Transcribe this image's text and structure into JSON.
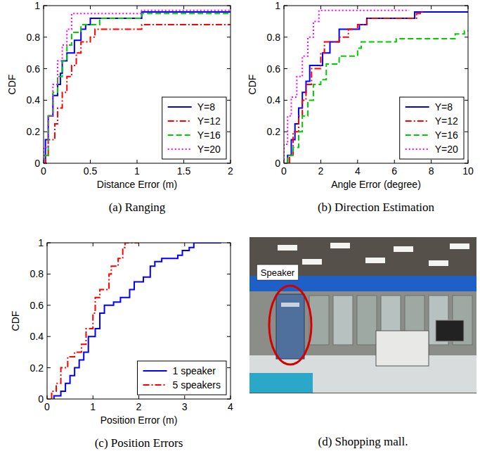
{
  "chart_data": [
    {
      "type": "step",
      "title": "(a) Ranging",
      "xlabel": "Distance Error (m)",
      "ylabel": "CDF",
      "xlim": [
        0,
        2
      ],
      "xticks": [
        0,
        0.5,
        1,
        1.5,
        2
      ],
      "ylim": [
        0,
        1
      ],
      "yticks": [
        0,
        0.2,
        0.4,
        0.6,
        0.8,
        1
      ],
      "grid": false,
      "legend": "lower right",
      "series": [
        {
          "name": "Y=8",
          "color": "#0000ff",
          "line_style": "solid",
          "x": [
            0,
            0.02,
            0.05,
            0.1,
            0.15,
            0.18,
            0.2,
            0.25,
            0.33,
            0.4,
            0.45,
            0.5,
            1.05,
            2
          ],
          "values": [
            0,
            0.15,
            0.3,
            0.43,
            0.5,
            0.57,
            0.65,
            0.7,
            0.78,
            0.85,
            0.88,
            0.92,
            0.96,
            0.96
          ]
        },
        {
          "name": "Y=12",
          "color": "#ff0000",
          "line_style": "dashdot",
          "x": [
            0,
            0.02,
            0.05,
            0.12,
            0.15,
            0.2,
            0.25,
            0.3,
            0.35,
            0.4,
            0.5,
            0.55,
            1.05,
            2
          ],
          "values": [
            0,
            0.05,
            0.15,
            0.25,
            0.35,
            0.45,
            0.55,
            0.62,
            0.7,
            0.77,
            0.8,
            0.85,
            0.88,
            0.88
          ]
        },
        {
          "name": "Y=16",
          "color": "#00cc00",
          "line_style": "dashed",
          "x": [
            0,
            0.05,
            0.1,
            0.15,
            0.2,
            0.25,
            0.3,
            0.4,
            0.6,
            1.05,
            2
          ],
          "values": [
            0.05,
            0.3,
            0.45,
            0.55,
            0.65,
            0.75,
            0.83,
            0.88,
            0.92,
            0.95,
            0.95
          ]
        },
        {
          "name": "Y=20",
          "color": "#ff00ff",
          "line_style": "dotted",
          "x": [
            0,
            0.05,
            0.1,
            0.15,
            0.2,
            0.25,
            0.3,
            1.05,
            2
          ],
          "values": [
            0.1,
            0.3,
            0.5,
            0.65,
            0.75,
            0.85,
            0.95,
            0.97,
            0.97
          ]
        }
      ]
    },
    {
      "type": "step",
      "title": "(b) Direction Estimation",
      "xlabel": "Angle Error (degree)",
      "ylabel": "CDF",
      "xlim": [
        0,
        10
      ],
      "xticks": [
        0,
        2,
        4,
        6,
        8,
        10
      ],
      "ylim": [
        0,
        1
      ],
      "yticks": [
        0,
        0.2,
        0.4,
        0.6,
        0.8,
        1
      ],
      "grid": false,
      "legend": "lower right",
      "series": [
        {
          "name": "Y=8",
          "color": "#0000ff",
          "line_style": "solid",
          "x": [
            0.2,
            0.4,
            0.6,
            0.8,
            1,
            1.2,
            1.4,
            2.1,
            2.5,
            3,
            4.1,
            4.5,
            7.1,
            10
          ],
          "values": [
            0.05,
            0.15,
            0.25,
            0.35,
            0.45,
            0.52,
            0.62,
            0.7,
            0.77,
            0.85,
            0.88,
            0.92,
            0.96,
            0.96
          ]
        },
        {
          "name": "Y=12",
          "color": "#ff0000",
          "line_style": "dashdot",
          "x": [
            0.3,
            0.5,
            0.8,
            1,
            1.2,
            1.5,
            2,
            2.2,
            3,
            3.5,
            4,
            4.5,
            7.2,
            7.5
          ],
          "values": [
            0.05,
            0.2,
            0.3,
            0.4,
            0.5,
            0.6,
            0.7,
            0.77,
            0.8,
            0.85,
            0.88,
            0.92,
            0.95,
            0.98
          ]
        },
        {
          "name": "Y=16",
          "color": "#00cc00",
          "line_style": "dashed",
          "x": [
            0.2,
            0.5,
            0.8,
            1,
            1.3,
            1.6,
            2,
            2.3,
            3,
            4,
            4.2,
            6.1,
            9.3,
            9.8,
            10
          ],
          "values": [
            0.05,
            0.1,
            0.2,
            0.3,
            0.4,
            0.5,
            0.53,
            0.63,
            0.68,
            0.73,
            0.77,
            0.79,
            0.82,
            0.84,
            0.84
          ]
        },
        {
          "name": "Y=20",
          "color": "#ff00ff",
          "line_style": "dotted",
          "x": [
            0,
            0.2,
            0.4,
            0.7,
            1,
            1.3,
            1.6,
            1.9,
            6.8
          ],
          "values": [
            0.12,
            0.3,
            0.42,
            0.55,
            0.68,
            0.8,
            0.9,
            0.97,
            0.97
          ]
        }
      ]
    },
    {
      "type": "step",
      "title": "(c) Position Errors",
      "xlabel": "Position Error (m)",
      "ylabel": "CDF",
      "xlim": [
        0,
        4
      ],
      "xticks": [
        0,
        1,
        2,
        3,
        4
      ],
      "ylim": [
        0,
        1
      ],
      "yticks": [
        0,
        0.2,
        0.4,
        0.6,
        0.8,
        1
      ],
      "grid": false,
      "legend": "lower right",
      "series": [
        {
          "name": "1 speaker",
          "color": "#0000ff",
          "line_style": "solid",
          "x": [
            0.15,
            0.3,
            0.4,
            0.5,
            0.6,
            0.7,
            0.8,
            0.9,
            1.05,
            1.15,
            1.25,
            1.45,
            1.6,
            1.8,
            1.9,
            2.1,
            2.25,
            2.35,
            2.5,
            2.85,
            2.95,
            3.1,
            3.2,
            3.8
          ],
          "values": [
            0.02,
            0.05,
            0.1,
            0.15,
            0.2,
            0.25,
            0.3,
            0.4,
            0.45,
            0.55,
            0.6,
            0.62,
            0.65,
            0.7,
            0.75,
            0.78,
            0.85,
            0.88,
            0.9,
            0.92,
            0.95,
            0.97,
            1,
            1
          ]
        },
        {
          "name": "5 speakers",
          "color": "#ff0000",
          "line_style": "dashdot",
          "x": [
            0.1,
            0.2,
            0.3,
            0.45,
            0.6,
            0.75,
            0.85,
            1.0,
            1.05,
            1.15,
            1.35,
            1.4,
            1.55,
            1.65,
            1.7,
            2
          ],
          "values": [
            0.05,
            0.1,
            0.2,
            0.27,
            0.3,
            0.35,
            0.45,
            0.55,
            0.65,
            0.7,
            0.8,
            0.85,
            0.9,
            0.97,
            1,
            1
          ]
        }
      ]
    }
  ],
  "photo": {
    "caption": "(d) Shopping mall.",
    "label": "Speaker"
  }
}
